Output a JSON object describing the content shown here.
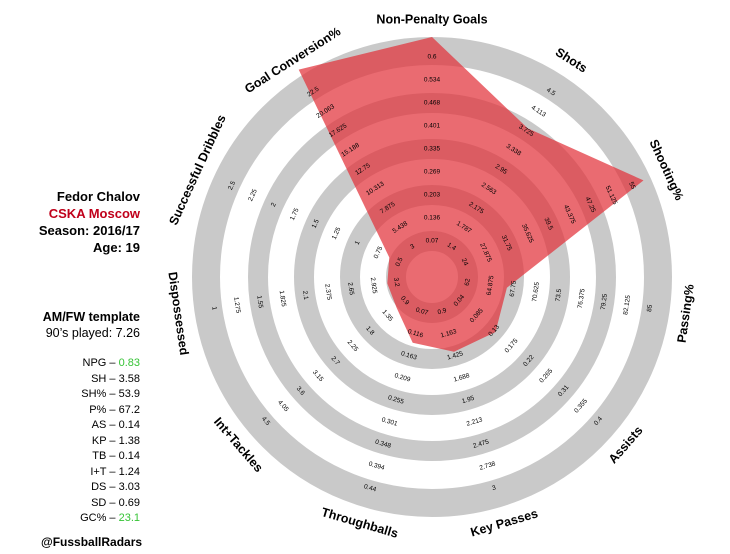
{
  "player": {
    "name": "Fedor Chalov",
    "team": "CSKA Moscow",
    "season": "Season: 2016/17",
    "age": "Age: 19",
    "template": "AM/FW template",
    "minutes": "90’s played: 7.26"
  },
  "stats": [
    {
      "label": "NPG",
      "value": "0.83",
      "highlight": true
    },
    {
      "label": "SH",
      "value": "3.58",
      "highlight": false
    },
    {
      "label": "SH%",
      "value": "53.9",
      "highlight": false
    },
    {
      "label": "P%",
      "value": "67.2",
      "highlight": false
    },
    {
      "label": "AS",
      "value": "0.14",
      "highlight": false
    },
    {
      "label": "KP",
      "value": "1.38",
      "highlight": false
    },
    {
      "label": "TB",
      "value": "0.14",
      "highlight": false
    },
    {
      "label": "I+T",
      "value": "1.24",
      "highlight": false
    },
    {
      "label": "DS",
      "value": "3.03",
      "highlight": false
    },
    {
      "label": "SD",
      "value": "0.69",
      "highlight": false
    },
    {
      "label": "GC%",
      "value": "23.1",
      "highlight": true
    }
  ],
  "credit": "@FussballRadars",
  "colors": {
    "ring": "#c9c9c9",
    "fill": "#e2323a",
    "fill_opacity": 0.72,
    "team": "#c0001a",
    "highlight": "#35c335"
  },
  "chart_data": {
    "type": "radar",
    "axes": [
      {
        "name": "Non-Penalty Goals",
        "ticks": [
          "0.07",
          "0.136",
          "0.203",
          "0.269",
          "0.335",
          "0.401",
          "0.468",
          "0.534",
          "0.6"
        ],
        "min": 0,
        "max": 0.6,
        "value": 0.6
      },
      {
        "name": "Shots",
        "ticks": [
          "1.4",
          "1.787",
          "2.175",
          "2.563",
          "2.95",
          "3.338",
          "3.725",
          "4.113",
          "4.5"
        ],
        "min": 1.0,
        "max": 4.5,
        "value": 3.58
      },
      {
        "name": "Shooting%",
        "ticks": [
          "24",
          "27.875",
          "31.75",
          "35.625",
          "39.5",
          "43.375",
          "47.25",
          "51.125",
          "55"
        ],
        "min": 20,
        "max": 55,
        "value": 53.9
      },
      {
        "name": "Passing%",
        "ticks": [
          "62",
          "64.875",
          "67.75",
          "70.625",
          "73.5",
          "76.375",
          "79.25",
          "82.125",
          "85"
        ],
        "min": 59,
        "max": 85,
        "value": 67.2
      },
      {
        "name": "Assists",
        "ticks": [
          "0.04",
          "0.085",
          "0.13",
          "0.175",
          "0.22",
          "0.265",
          "0.31",
          "0.355",
          "0.4"
        ],
        "min": 0,
        "max": 0.4,
        "value": 0.14
      },
      {
        "name": "Key Passes",
        "ticks": [
          "0.9",
          "1.163",
          "1.425",
          "1.688",
          "1.95",
          "2.213",
          "2.475",
          "2.738",
          "3"
        ],
        "min": 0.6,
        "max": 3.0,
        "value": 1.38
      },
      {
        "name": "Throughballs",
        "ticks": [
          "0.07",
          "0.116",
          "0.163",
          "0.209",
          "0.255",
          "0.301",
          "0.348",
          "0.394",
          "0.44"
        ],
        "min": 0.02,
        "max": 0.44,
        "value": 0.14
      },
      {
        "name": "Int+Tackles",
        "ticks": [
          "0.9",
          "1.35",
          "1.8",
          "2.25",
          "2.7",
          "3.15",
          "3.6",
          "4.05",
          "4.5"
        ],
        "min": 0.45,
        "max": 4.5,
        "value": 1.24
      },
      {
        "name": "Dispossessed",
        "ticks": [
          "3.2",
          "2.925",
          "2.65",
          "2.375",
          "2.1",
          "1.825",
          "1.55",
          "1.275",
          "1"
        ],
        "min": 3.5,
        "max": 1.0,
        "value": 3.03
      },
      {
        "name": "Successful Dribbles",
        "ticks": [
          "0.5",
          "0.75",
          "1",
          "1.25",
          "1.5",
          "1.75",
          "2",
          "2.25",
          "2.5"
        ],
        "min": 0.25,
        "max": 2.5,
        "value": 0.69
      },
      {
        "name": "Goal Conversion%",
        "ticks": [
          "3",
          "5.438",
          "7.875",
          "10.313",
          "12.75",
          "15.188",
          "17.625",
          "20.063",
          "22.5"
        ],
        "min": 0.5,
        "max": 22.5,
        "value": 23.1
      }
    ]
  }
}
